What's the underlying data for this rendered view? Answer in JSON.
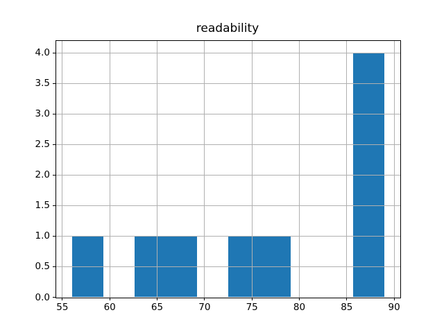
{
  "title": "readability",
  "chart_data": {
    "type": "bar",
    "subtype": "histogram",
    "title": "readability",
    "xlabel": "",
    "ylabel": "",
    "bin_edges": [
      56.0,
      59.3,
      62.6,
      65.9,
      69.2,
      72.5,
      75.8,
      79.1,
      82.4,
      85.7,
      89.0
    ],
    "counts": [
      1,
      0,
      1,
      1,
      0,
      1,
      1,
      0,
      0,
      4
    ],
    "x_ticks": [
      55,
      60,
      65,
      70,
      75,
      80,
      85,
      90
    ],
    "x_tick_labels": [
      "55",
      "60",
      "65",
      "70",
      "75",
      "80",
      "85",
      "90"
    ],
    "y_ticks": [
      0.0,
      0.5,
      1.0,
      1.5,
      2.0,
      2.5,
      3.0,
      3.5,
      4.0
    ],
    "y_tick_labels": [
      "0.0",
      "0.5",
      "1.0",
      "1.5",
      "2.0",
      "2.5",
      "3.0",
      "3.5",
      "4.0"
    ],
    "xlim": [
      54.35,
      90.65
    ],
    "ylim": [
      0,
      4.2
    ],
    "grid": true,
    "grid_above_bars": true,
    "legend_position": "none",
    "colors": {
      "bar_fill": "#1f77b4",
      "grid": "#b0b0b0",
      "spine": "#000000",
      "text": "#000000",
      "background": "#ffffff"
    }
  }
}
